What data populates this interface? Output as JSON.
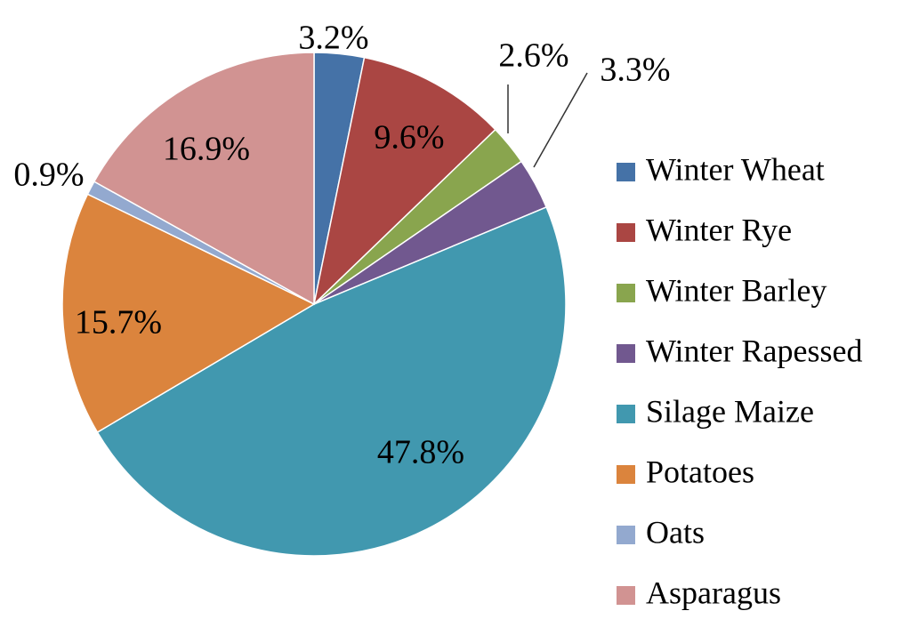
{
  "chart_data": {
    "type": "pie",
    "title": "",
    "slices": [
      {
        "label": "Winter Wheat",
        "value": 3.2,
        "display": "3.2%",
        "color": "#4572A7"
      },
      {
        "label": "Winter Rye",
        "value": 9.6,
        "display": "9.6%",
        "color": "#AA4643"
      },
      {
        "label": "Winter Barley",
        "value": 2.6,
        "display": "2.6%",
        "color": "#89A54E"
      },
      {
        "label": "Winter Rapessed",
        "value": 3.3,
        "display": "3.3%",
        "color": "#71588F"
      },
      {
        "label": "Silage Maize",
        "value": 47.8,
        "display": "47.8%",
        "color": "#4198AF"
      },
      {
        "label": "Potatoes",
        "value": 15.7,
        "display": "15.7%",
        "color": "#DB843D"
      },
      {
        "label": "Oats",
        "value": 0.9,
        "display": "0.9%",
        "color": "#93A9CF"
      },
      {
        "label": "Asparagus",
        "value": 16.9,
        "display": "16.9%",
        "color": "#D19392"
      }
    ],
    "legend_position": "right"
  }
}
